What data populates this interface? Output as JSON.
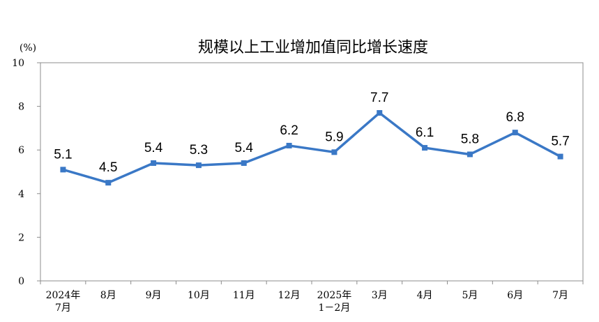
{
  "chart_data": {
    "type": "line",
    "title": "规模以上工业增加值同比增长速度",
    "ylabel": "(%)",
    "xlabel": "",
    "ylim": [
      0,
      10
    ],
    "yticks": [
      0,
      2,
      4,
      6,
      8,
      10
    ],
    "grid": false,
    "legend": "none",
    "categories": [
      [
        "2024年",
        "7月"
      ],
      [
        "8月"
      ],
      [
        "9月"
      ],
      [
        "10月"
      ],
      [
        "11月"
      ],
      [
        "12月"
      ],
      [
        "2025年",
        "1－2月"
      ],
      [
        "3月"
      ],
      [
        "4月"
      ],
      [
        "5月"
      ],
      [
        "6月"
      ],
      [
        "7月"
      ]
    ],
    "series": [
      {
        "values": [
          5.1,
          4.5,
          5.4,
          5.3,
          5.4,
          6.2,
          5.9,
          7.7,
          6.1,
          5.8,
          6.8,
          5.7
        ],
        "labels": [
          "5.1",
          "4.5",
          "5.4",
          "5.3",
          "5.4",
          "6.2",
          "5.9",
          "7.7",
          "6.1",
          "5.8",
          "6.8",
          "5.7"
        ]
      }
    ],
    "colors": {
      "line": "#3a78c6",
      "axis": "#8c8c8c",
      "text": "#000000"
    }
  }
}
